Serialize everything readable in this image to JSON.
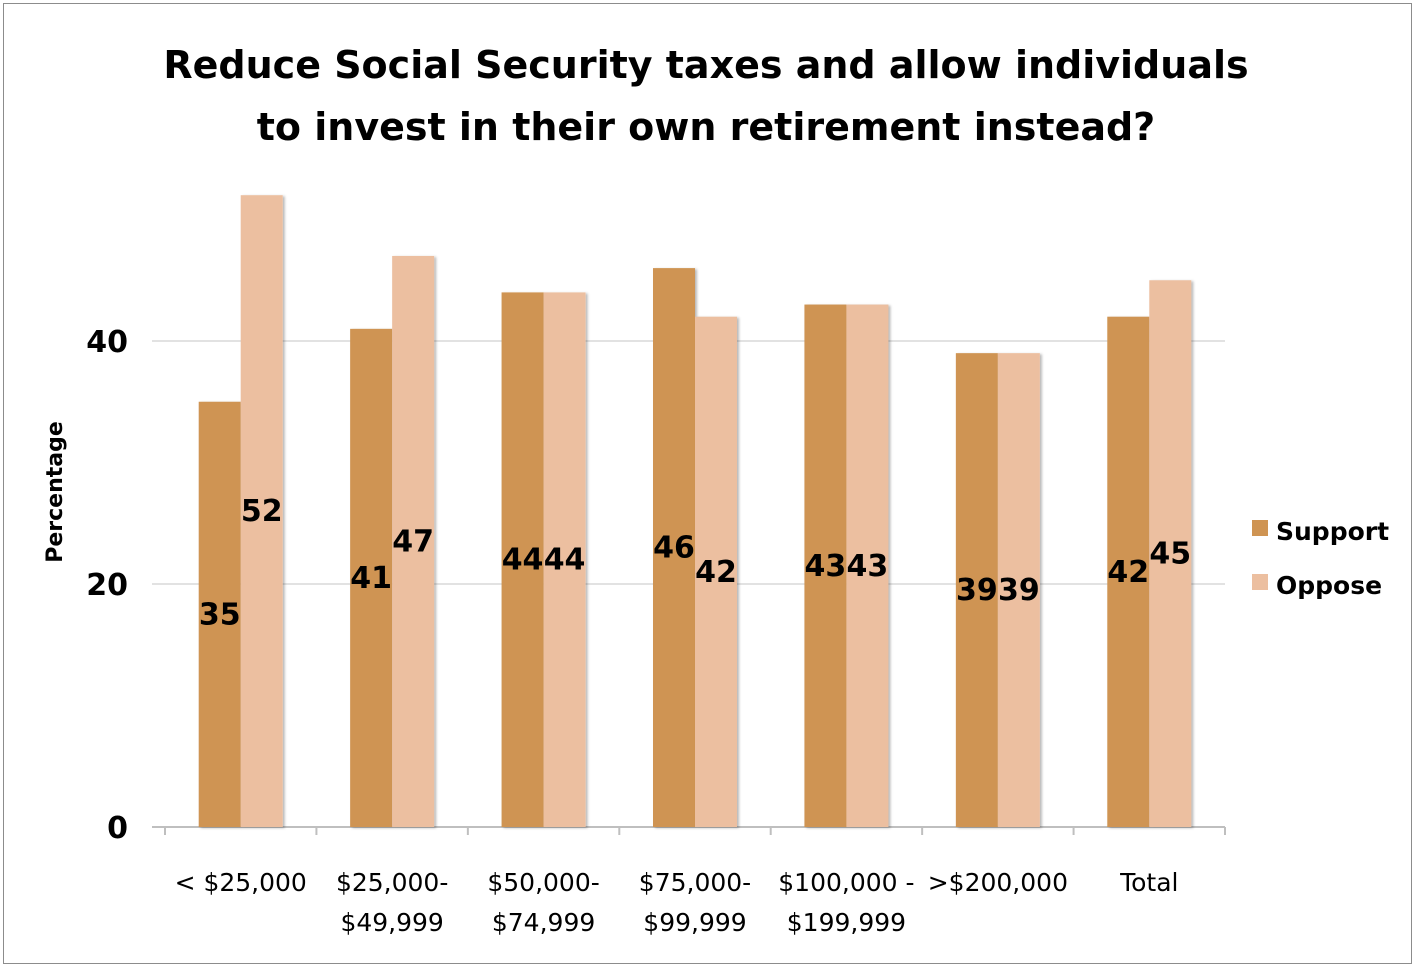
{
  "chart_data": {
    "type": "bar",
    "title": [
      "Reduce Social Security taxes and allow individuals",
      "to invest in their own retirement instead?"
    ],
    "ylabel": "Percentage",
    "xlabel": "",
    "ylim": [
      0,
      56
    ],
    "yticks": [
      0,
      20,
      40
    ],
    "grid": true,
    "legend_position": "right",
    "categories": [
      [
        "< $25,000"
      ],
      [
        "$25,000-",
        "$49,999"
      ],
      [
        "$50,000-",
        "$74,999"
      ],
      [
        "$75,000-",
        "$99,999"
      ],
      [
        "$100,000 -",
        "$199,999"
      ],
      [
        ">$200,000"
      ],
      [
        "Total"
      ]
    ],
    "series": [
      {
        "name": "Support",
        "color": "#cf9452",
        "values": [
          35,
          41,
          44,
          46,
          43,
          39,
          42
        ],
        "labels": [
          "35",
          "41",
          "44",
          "46",
          "43",
          "39",
          "42"
        ]
      },
      {
        "name": "Oppose",
        "color": "#ecbfa0",
        "values": [
          52,
          47,
          44,
          42,
          43,
          39,
          45
        ],
        "labels": [
          "52",
          "47",
          "44",
          "42",
          "43",
          "39",
          "45"
        ]
      }
    ]
  }
}
